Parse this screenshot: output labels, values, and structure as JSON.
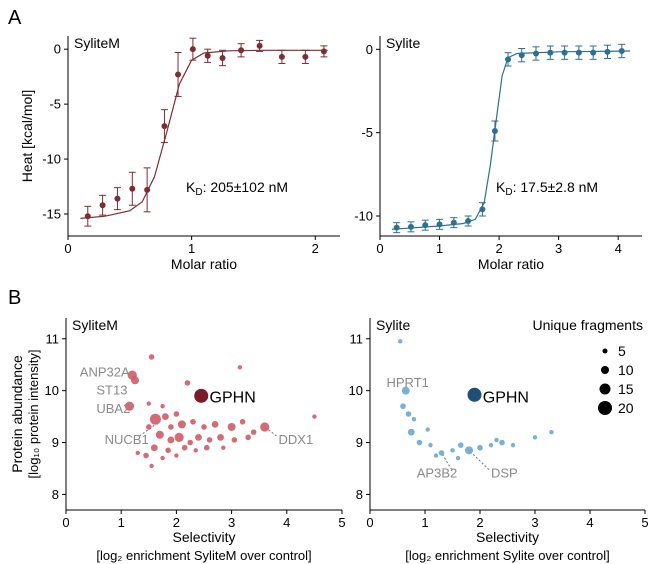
{
  "panel_labels": [
    "A",
    "B"
  ],
  "chart_data": [
    {
      "type": "scatter",
      "title": "SyliteM",
      "xlabel": "Molar ratio",
      "ylabel": "Heat [kcal/mol]",
      "xlim": [
        0,
        2.2
      ],
      "ylim": [
        -17,
        1.2
      ],
      "xticks": [
        0,
        1,
        2
      ],
      "yticks": [
        0,
        -5,
        -10,
        -15
      ],
      "color": "#7b2e34",
      "annotation_prefix": "K",
      "annotation_sub": "D",
      "annotation_value": ": 205±102 nM",
      "points": [
        {
          "x": 0.16,
          "y": -15.2,
          "err": 0.9
        },
        {
          "x": 0.28,
          "y": -14.2,
          "err": 0.9
        },
        {
          "x": 0.4,
          "y": -13.6,
          "err": 1.0
        },
        {
          "x": 0.52,
          "y": -12.7,
          "err": 1.5
        },
        {
          "x": 0.64,
          "y": -12.8,
          "err": 2.0
        },
        {
          "x": 0.78,
          "y": -7.0,
          "err": 1.5
        },
        {
          "x": 0.89,
          "y": -2.3,
          "err": 2.0
        },
        {
          "x": 1.01,
          "y": 0.0,
          "err": 1.0
        },
        {
          "x": 1.13,
          "y": -0.6,
          "err": 0.6
        },
        {
          "x": 1.25,
          "y": -0.8,
          "err": 0.7
        },
        {
          "x": 1.4,
          "y": -0.1,
          "err": 0.6
        },
        {
          "x": 1.55,
          "y": 0.3,
          "err": 0.5
        },
        {
          "x": 1.73,
          "y": -0.7,
          "err": 0.6
        },
        {
          "x": 1.92,
          "y": -0.7,
          "err": 0.6
        },
        {
          "x": 2.07,
          "y": -0.2,
          "err": 0.5
        }
      ],
      "fit": [
        [
          0.1,
          -15.4
        ],
        [
          0.3,
          -15.2
        ],
        [
          0.5,
          -14.7
        ],
        [
          0.6,
          -13.9
        ],
        [
          0.7,
          -11.6
        ],
        [
          0.8,
          -7.5
        ],
        [
          0.9,
          -3.2
        ],
        [
          1.0,
          -1.0
        ],
        [
          1.1,
          -0.35
        ],
        [
          1.3,
          -0.15
        ],
        [
          1.6,
          -0.1
        ],
        [
          2.1,
          -0.1
        ]
      ]
    },
    {
      "type": "scatter",
      "title": "Sylite",
      "xlabel": "Molar ratio",
      "ylabel": "",
      "xlim": [
        0,
        4.4
      ],
      "ylim": [
        -11.2,
        0.8
      ],
      "xticks": [
        0,
        1,
        2,
        3,
        4
      ],
      "yticks": [
        0,
        -5,
        -10
      ],
      "color": "#2f6f92",
      "annotation_prefix": "K",
      "annotation_sub": "D",
      "annotation_value": ": 17.5±2.8 nM",
      "points": [
        {
          "x": 0.28,
          "y": -10.7,
          "err": 0.3
        },
        {
          "x": 0.52,
          "y": -10.65,
          "err": 0.3
        },
        {
          "x": 0.76,
          "y": -10.55,
          "err": 0.3
        },
        {
          "x": 1.0,
          "y": -10.5,
          "err": 0.3
        },
        {
          "x": 1.24,
          "y": -10.4,
          "err": 0.3
        },
        {
          "x": 1.48,
          "y": -10.3,
          "err": 0.3
        },
        {
          "x": 1.72,
          "y": -9.6,
          "err": 0.4
        },
        {
          "x": 1.93,
          "y": -4.9,
          "err": 0.6
        },
        {
          "x": 2.15,
          "y": -0.6,
          "err": 0.4
        },
        {
          "x": 2.38,
          "y": -0.35,
          "err": 0.4
        },
        {
          "x": 2.62,
          "y": -0.25,
          "err": 0.4
        },
        {
          "x": 2.86,
          "y": -0.2,
          "err": 0.4
        },
        {
          "x": 3.1,
          "y": -0.2,
          "err": 0.4
        },
        {
          "x": 3.34,
          "y": -0.2,
          "err": 0.4
        },
        {
          "x": 3.58,
          "y": -0.2,
          "err": 0.4
        },
        {
          "x": 3.82,
          "y": -0.15,
          "err": 0.4
        },
        {
          "x": 4.06,
          "y": -0.1,
          "err": 0.4
        }
      ],
      "fit": [
        [
          0.2,
          -10.8
        ],
        [
          1.0,
          -10.6
        ],
        [
          1.4,
          -10.45
        ],
        [
          1.6,
          -10.2
        ],
        [
          1.75,
          -9.2
        ],
        [
          1.85,
          -7.0
        ],
        [
          1.95,
          -4.3
        ],
        [
          2.05,
          -1.6
        ],
        [
          2.15,
          -0.5
        ],
        [
          2.3,
          -0.25
        ],
        [
          3.0,
          -0.15
        ],
        [
          4.2,
          -0.1
        ]
      ]
    },
    {
      "type": "scatter",
      "title": "SyliteM",
      "xlabel": "Selectivity",
      "xlabel2": "[log₂ enrichment SyliteM over control]",
      "ylabel": "Protein abundance",
      "ylabel2": "[log₁₀ protein intensity]",
      "xlim": [
        0,
        5
      ],
      "ylim": [
        7.7,
        11.4
      ],
      "xticks": [
        0,
        1,
        2,
        3,
        4,
        5
      ],
      "yticks": [
        8,
        9,
        10,
        11
      ],
      "color": "#cd5c68",
      "highlight_color": "#7a1c26",
      "labels": [
        {
          "text": "ANP32A",
          "x": 0.25,
          "y": 10.35,
          "px": 1.2,
          "py": 10.3,
          "leader": false
        },
        {
          "text": "ST13",
          "x": 0.55,
          "y": 10.0,
          "px": 1.25,
          "py": 10.2,
          "leader": false
        },
        {
          "text": "UBA2",
          "x": 0.55,
          "y": 9.65,
          "px": 1.15,
          "py": 9.7,
          "leader": false
        },
        {
          "text": "NUCB1",
          "x": 0.7,
          "y": 9.05,
          "px": 1.62,
          "py": 9.35,
          "leader": true
        },
        {
          "text": "DDX1",
          "x": 3.85,
          "y": 9.05,
          "px": 3.6,
          "py": 9.3,
          "leader": true
        },
        {
          "text": "GPHN",
          "x": 2.6,
          "y": 9.85,
          "px": 2.45,
          "py": 9.9,
          "leader": false,
          "highlight": true
        }
      ],
      "points": [
        {
          "x": 2.45,
          "y": 9.9,
          "s": 20
        },
        {
          "x": 1.2,
          "y": 10.3,
          "s": 12
        },
        {
          "x": 1.25,
          "y": 10.2,
          "s": 10
        },
        {
          "x": 1.15,
          "y": 9.7,
          "s": 12
        },
        {
          "x": 1.55,
          "y": 10.65,
          "s": 6
        },
        {
          "x": 2.2,
          "y": 10.15,
          "s": 6
        },
        {
          "x": 3.15,
          "y": 10.45,
          "s": 4
        },
        {
          "x": 1.62,
          "y": 9.45,
          "s": 15
        },
        {
          "x": 1.5,
          "y": 9.3,
          "s": 6
        },
        {
          "x": 1.8,
          "y": 9.5,
          "s": 8
        },
        {
          "x": 2.0,
          "y": 9.55,
          "s": 6
        },
        {
          "x": 2.1,
          "y": 9.35,
          "s": 10
        },
        {
          "x": 2.3,
          "y": 9.4,
          "s": 6
        },
        {
          "x": 2.5,
          "y": 9.3,
          "s": 6
        },
        {
          "x": 2.7,
          "y": 9.35,
          "s": 8
        },
        {
          "x": 3.0,
          "y": 9.3,
          "s": 10
        },
        {
          "x": 3.2,
          "y": 9.4,
          "s": 6
        },
        {
          "x": 3.6,
          "y": 9.3,
          "s": 12
        },
        {
          "x": 3.4,
          "y": 9.2,
          "s": 6
        },
        {
          "x": 4.5,
          "y": 9.5,
          "s": 4
        },
        {
          "x": 1.7,
          "y": 9.15,
          "s": 10
        },
        {
          "x": 1.9,
          "y": 9.05,
          "s": 8
        },
        {
          "x": 2.05,
          "y": 9.1,
          "s": 12
        },
        {
          "x": 2.25,
          "y": 9.0,
          "s": 6
        },
        {
          "x": 2.4,
          "y": 9.1,
          "s": 8
        },
        {
          "x": 2.6,
          "y": 9.05,
          "s": 6
        },
        {
          "x": 2.8,
          "y": 9.1,
          "s": 8
        },
        {
          "x": 3.05,
          "y": 9.05,
          "s": 6
        },
        {
          "x": 3.3,
          "y": 9.1,
          "s": 6
        },
        {
          "x": 1.6,
          "y": 8.9,
          "s": 8
        },
        {
          "x": 1.85,
          "y": 8.85,
          "s": 6
        },
        {
          "x": 2.15,
          "y": 8.9,
          "s": 6
        },
        {
          "x": 2.35,
          "y": 8.85,
          "s": 4
        },
        {
          "x": 2.55,
          "y": 8.9,
          "s": 6
        },
        {
          "x": 2.85,
          "y": 8.9,
          "s": 4
        },
        {
          "x": 1.45,
          "y": 8.75,
          "s": 6
        },
        {
          "x": 1.75,
          "y": 8.7,
          "s": 4
        },
        {
          "x": 2.0,
          "y": 8.75,
          "s": 4
        },
        {
          "x": 1.55,
          "y": 8.55,
          "s": 4
        },
        {
          "x": 1.3,
          "y": 8.8,
          "s": 4
        },
        {
          "x": 1.9,
          "y": 9.3,
          "s": 6
        },
        {
          "x": 1.75,
          "y": 9.7,
          "s": 4
        },
        {
          "x": 1.5,
          "y": 9.75,
          "s": 4
        }
      ]
    },
    {
      "type": "scatter",
      "title": "Sylite",
      "xlabel": "Selectivity",
      "xlabel2": "[log₂ enrichment Sylite over control]",
      "ylabel": "",
      "xlim": [
        0,
        5
      ],
      "ylim": [
        7.7,
        11.4
      ],
      "xticks": [
        0,
        1,
        2,
        3,
        4,
        5
      ],
      "yticks": [
        8,
        9,
        10,
        11
      ],
      "color": "#6ca7d0",
      "highlight_color": "#1f4f72",
      "labels": [
        {
          "text": "HPRT1",
          "x": 0.3,
          "y": 10.15,
          "px": 0.65,
          "py": 10.0,
          "leader": false
        },
        {
          "text": "AP3B2",
          "x": 0.85,
          "y": 8.4,
          "px": 1.3,
          "py": 8.8,
          "leader": true
        },
        {
          "text": "DSP",
          "x": 2.2,
          "y": 8.4,
          "px": 1.8,
          "py": 8.85,
          "leader": true
        },
        {
          "text": "GPHN",
          "x": 2.05,
          "y": 9.85,
          "px": 1.9,
          "py": 9.92,
          "leader": false,
          "highlight": true
        }
      ],
      "legend": {
        "title": "Unique fragments",
        "sizes": [
          5,
          10,
          15,
          20
        ]
      },
      "points": [
        {
          "x": 1.9,
          "y": 9.92,
          "s": 20
        },
        {
          "x": 0.65,
          "y": 10.0,
          "s": 10
        },
        {
          "x": 0.55,
          "y": 10.95,
          "s": 4
        },
        {
          "x": 0.6,
          "y": 9.7,
          "s": 6
        },
        {
          "x": 0.7,
          "y": 9.55,
          "s": 6
        },
        {
          "x": 0.8,
          "y": 9.45,
          "s": 4
        },
        {
          "x": 0.75,
          "y": 9.2,
          "s": 8
        },
        {
          "x": 0.9,
          "y": 9.0,
          "s": 6
        },
        {
          "x": 1.1,
          "y": 8.95,
          "s": 4
        },
        {
          "x": 1.3,
          "y": 8.8,
          "s": 6
        },
        {
          "x": 1.5,
          "y": 8.85,
          "s": 4
        },
        {
          "x": 1.8,
          "y": 8.85,
          "s": 10
        },
        {
          "x": 1.65,
          "y": 8.95,
          "s": 6
        },
        {
          "x": 2.0,
          "y": 8.9,
          "s": 6
        },
        {
          "x": 2.2,
          "y": 8.95,
          "s": 4
        },
        {
          "x": 2.4,
          "y": 9.0,
          "s": 6
        },
        {
          "x": 2.6,
          "y": 8.95,
          "s": 4
        },
        {
          "x": 3.0,
          "y": 9.1,
          "s": 4
        },
        {
          "x": 3.3,
          "y": 9.2,
          "s": 4
        },
        {
          "x": 2.3,
          "y": 9.05,
          "s": 4
        },
        {
          "x": 1.05,
          "y": 9.25,
          "s": 4
        },
        {
          "x": 1.2,
          "y": 8.75,
          "s": 4
        },
        {
          "x": 1.6,
          "y": 8.7,
          "s": 4
        }
      ]
    }
  ]
}
